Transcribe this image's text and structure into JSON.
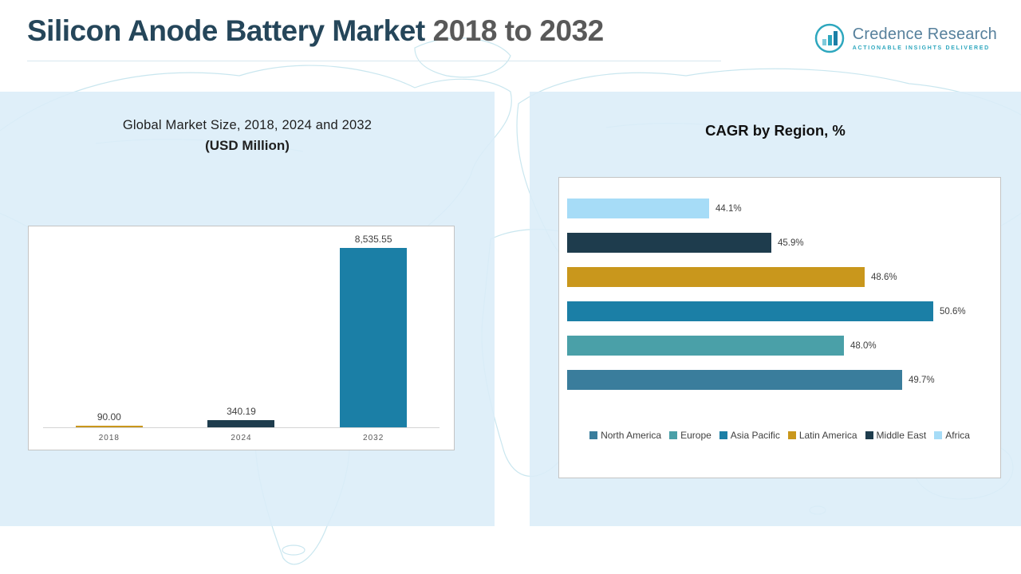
{
  "header": {
    "title_main": "Silicon Anode Battery Market",
    "title_range": "2018 to 2032",
    "logo": {
      "name": "Credence Research",
      "tagline": "Actionable Insights Delivered",
      "icon": "bar-chart-circle-icon",
      "accent_color": "#2ea7be",
      "text_color": "#56809c"
    }
  },
  "left_panel": {
    "title_line1": "Global Market Size, 2018, 2024 and 2032",
    "title_line2": "(USD Million)"
  },
  "right_panel": {
    "title": "CAGR by Region, %"
  },
  "colors": {
    "panel_background": "#dbedf8",
    "map_line": "#9ed3e2",
    "title_dark": "#25465a",
    "title_gray": "#595959"
  },
  "chart_data": [
    {
      "type": "bar",
      "orientation": "vertical",
      "title": "Global Market Size, 2018, 2024 and 2032 (USD Million)",
      "categories": [
        "2018",
        "2024",
        "2032"
      ],
      "values": [
        90.0,
        340.19,
        8535.55
      ],
      "value_labels": [
        "90.00",
        "340.19",
        "8,535.55"
      ],
      "bar_colors": [
        "#c9971c",
        "#1e3c4d",
        "#1b7fa6"
      ],
      "xlabel": "",
      "ylabel": "",
      "ylim": [
        0,
        9000
      ],
      "grid": false,
      "legend_position": "none"
    },
    {
      "type": "bar",
      "orientation": "horizontal",
      "title": "CAGR by Region, %",
      "categories": [
        "North America",
        "Europe",
        "Asia Pacific",
        "Latin America",
        "Middle East",
        "Africa"
      ],
      "values": [
        49.7,
        48.0,
        50.6,
        48.6,
        45.9,
        44.1
      ],
      "value_labels": [
        "49.7%",
        "48.0%",
        "50.6%",
        "48.6%",
        "45.9%",
        "44.1%"
      ],
      "colors": [
        "#3a7d9c",
        "#4aa0a8",
        "#1b7fa6",
        "#c9971c",
        "#1e3c4d",
        "#a6dcf7"
      ],
      "xlabel": "",
      "ylabel": "",
      "xlim": [
        40,
        52
      ],
      "grid": false,
      "legend_position": "bottom",
      "display_order_top_to_bottom": [
        "Africa",
        "Middle East",
        "Latin America",
        "Asia Pacific",
        "Europe",
        "North America"
      ]
    }
  ]
}
